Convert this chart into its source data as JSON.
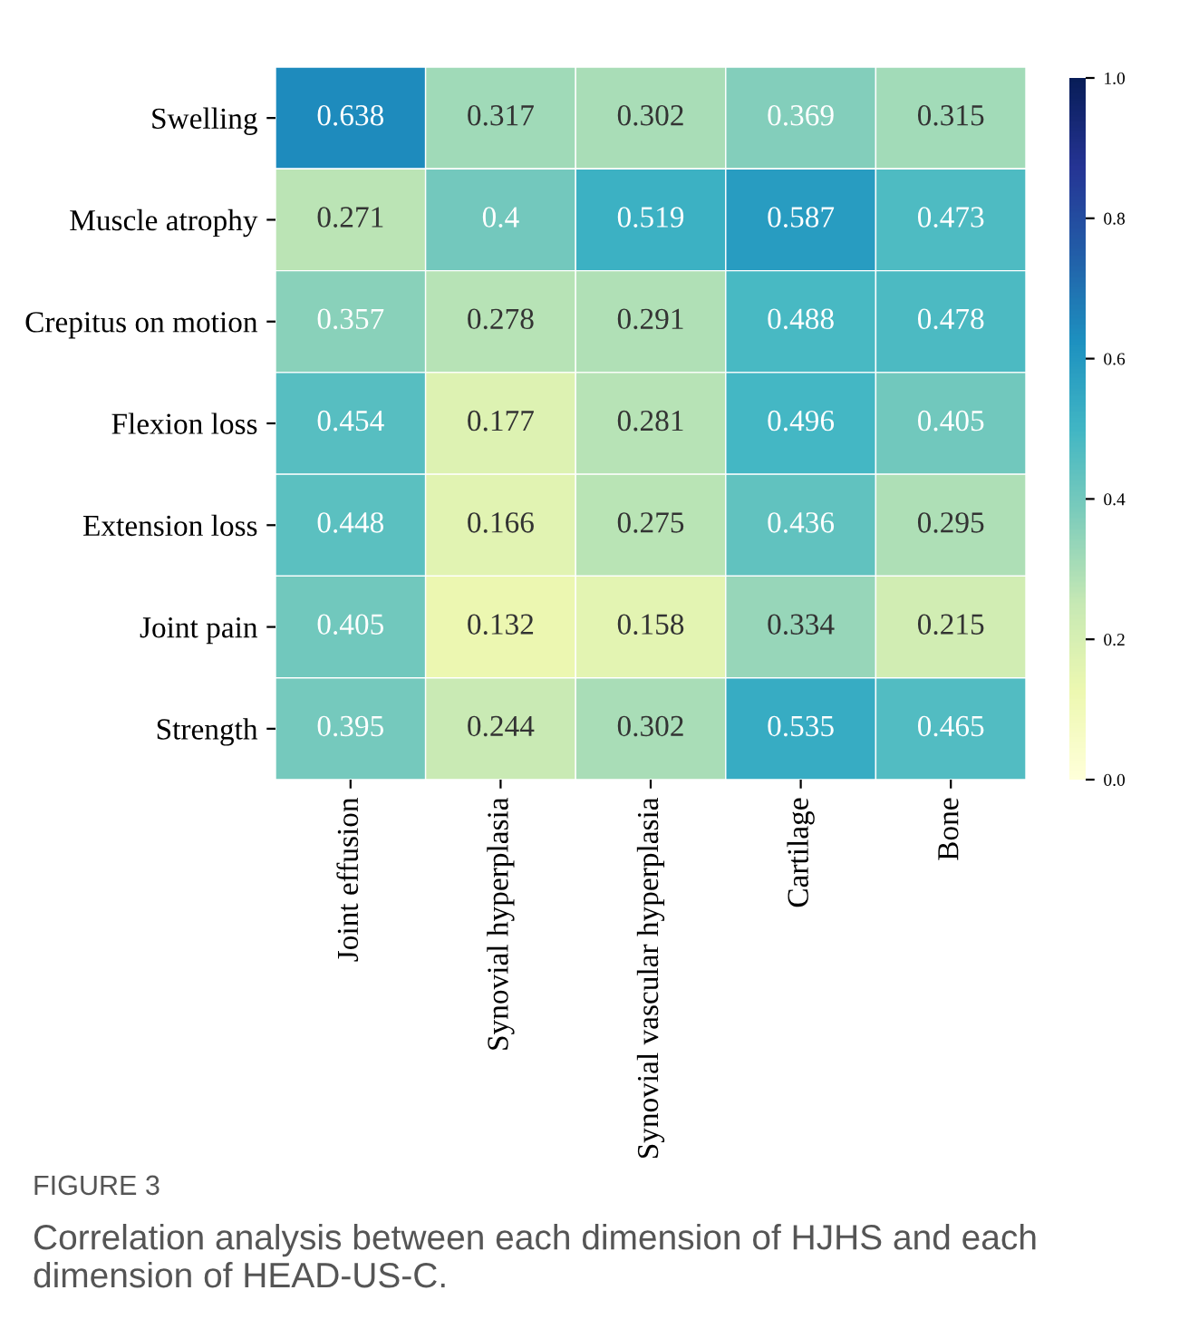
{
  "chart_data": {
    "type": "heatmap",
    "categories": [
      "Joint effusion",
      "Synovial hyperplasia",
      "Synovial vascular hyperplasia",
      "Cartilage",
      "Bone"
    ],
    "y_categories": [
      "Swelling",
      "Muscle atrophy",
      "Crepitus on motion",
      "Flexion loss",
      "Extension loss",
      "Joint pain",
      "Strength"
    ],
    "cells": [
      [
        0.638,
        0.317,
        0.302,
        0.369,
        0.315
      ],
      [
        0.271,
        0.4,
        0.519,
        0.587,
        0.473
      ],
      [
        0.357,
        0.278,
        0.291,
        0.488,
        0.478
      ],
      [
        0.454,
        0.177,
        0.281,
        0.496,
        0.405
      ],
      [
        0.448,
        0.166,
        0.275,
        0.436,
        0.295
      ],
      [
        0.405,
        0.132,
        0.158,
        0.334,
        0.215
      ],
      [
        0.395,
        0.244,
        0.302,
        0.535,
        0.465
      ]
    ],
    "clim": [
      0.0,
      1.0
    ],
    "cticks": [
      {
        "value": 0,
        "label": "0.0"
      },
      {
        "value": 0.2,
        "label": "0.2"
      },
      {
        "value": 0.4,
        "label": "0.4"
      },
      {
        "value": 0.6,
        "label": "0.6"
      },
      {
        "value": 0.8,
        "label": "0.8"
      },
      {
        "value": 1,
        "label": "1.0"
      }
    ],
    "data_labels": true,
    "annotations": [
      "FIGURE 3",
      "Correlation analysis between each dimension of HJHS and each dimension of HEAD-US-C."
    ]
  }
}
